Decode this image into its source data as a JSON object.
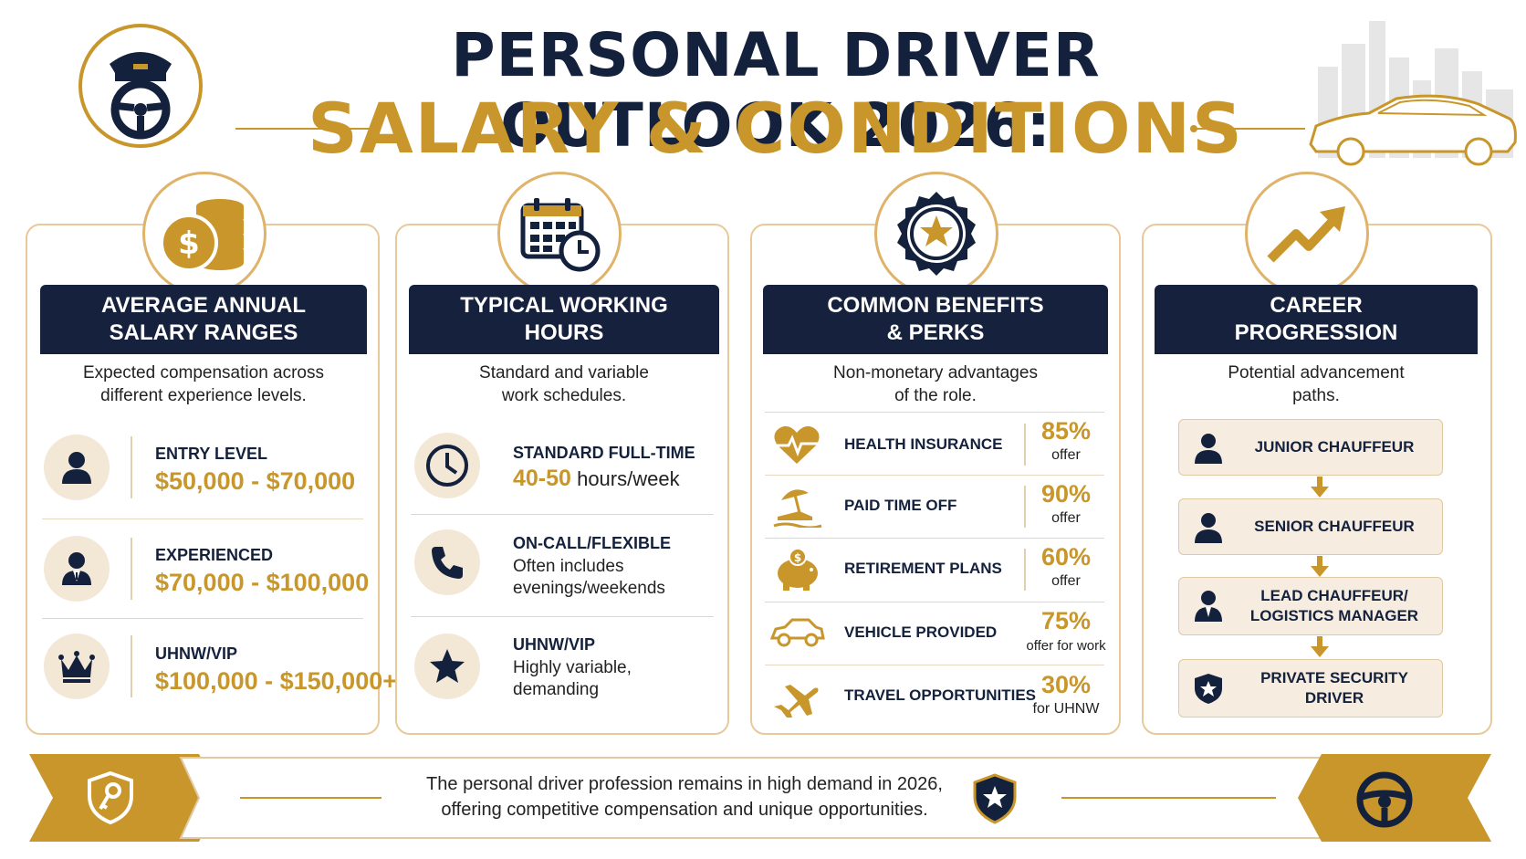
{
  "header": {
    "title_line1": "PERSONAL DRIVER OUTLOOK 2026:",
    "title_line2": "SALARY & CONDITIONS"
  },
  "colors": {
    "navy": "#14213d",
    "gold": "#c8962a",
    "cream": "#f3e7d6"
  },
  "salary": {
    "icon": "coins-dollar-icon",
    "heading_line1": "AVERAGE ANNUAL",
    "heading_line2": "SALARY RANGES",
    "subtitle_line1": "Expected compensation across",
    "subtitle_line2": "different experience levels.",
    "rows": [
      {
        "icon": "person-icon",
        "label": "ENTRY LEVEL",
        "range": "$50,000 - $70,000"
      },
      {
        "icon": "person-suit-icon",
        "label": "EXPERIENCED",
        "range": "$70,000 - $100,000"
      },
      {
        "icon": "crown-icon",
        "label": "UHNW/VIP",
        "range": "$100,000 - $150,000+"
      }
    ]
  },
  "hours": {
    "icon": "calendar-clock-icon",
    "heading_line1": "TYPICAL WORKING",
    "heading_line2": "HOURS",
    "subtitle_line1": "Standard and variable",
    "subtitle_line2": "work schedules.",
    "rows": [
      {
        "icon": "clock-icon",
        "label": "STANDARD FULL-TIME",
        "value_gold": "40-50",
        "value_rest": "hours/week"
      },
      {
        "icon": "phone-icon",
        "label": "ON-CALL/FLEXIBLE",
        "line1": "Often includes",
        "line2": "evenings/weekends"
      },
      {
        "icon": "star-icon",
        "label": "UHNW/VIP",
        "line1": "Highly variable,",
        "line2": "demanding"
      }
    ]
  },
  "benefits": {
    "icon": "star-badge-icon",
    "heading_line1": "COMMON BENEFITS",
    "heading_line2": "& PERKS",
    "subtitle_line1": "Non-monetary advantages",
    "subtitle_line2": "of the role.",
    "rows": [
      {
        "icon": "heart-pulse-icon",
        "label": "HEALTH INSURANCE",
        "pct": "85%",
        "sub": "offer"
      },
      {
        "icon": "beach-icon",
        "label": "PAID TIME OFF",
        "pct": "90%",
        "sub": "offer"
      },
      {
        "icon": "piggy-bank-icon",
        "label": "RETIREMENT PLANS",
        "pct": "60%",
        "sub": "offer"
      },
      {
        "icon": "car-icon",
        "label": "VEHICLE PROVIDED",
        "pct": "75%",
        "sub": "offer for work"
      },
      {
        "icon": "airplane-icon",
        "label": "TRAVEL OPPORTUNITIES",
        "pct": "30%",
        "sub": "for UHNW"
      }
    ]
  },
  "career": {
    "icon": "trend-up-icon",
    "heading_line1": "CAREER",
    "heading_line2": "PROGRESSION",
    "subtitle_line1": "Potential advancement",
    "subtitle_line2": "paths.",
    "steps": [
      {
        "icon": "person-icon",
        "line1": "JUNIOR CHAUFFEUR",
        "line2": ""
      },
      {
        "icon": "person-icon",
        "line1": "SENIOR CHAUFFEUR",
        "line2": ""
      },
      {
        "icon": "person-suit-icon",
        "line1": "LEAD CHAUFFEUR/",
        "line2": "LOGISTICS MANAGER"
      },
      {
        "icon": "shield-star-icon",
        "line1": "PRIVATE SECURITY",
        "line2": "DRIVER"
      }
    ]
  },
  "footer": {
    "line1": "The personal driver profession remains in high demand in 2026,",
    "line2": "offering competitive compensation and unique opportunities."
  }
}
